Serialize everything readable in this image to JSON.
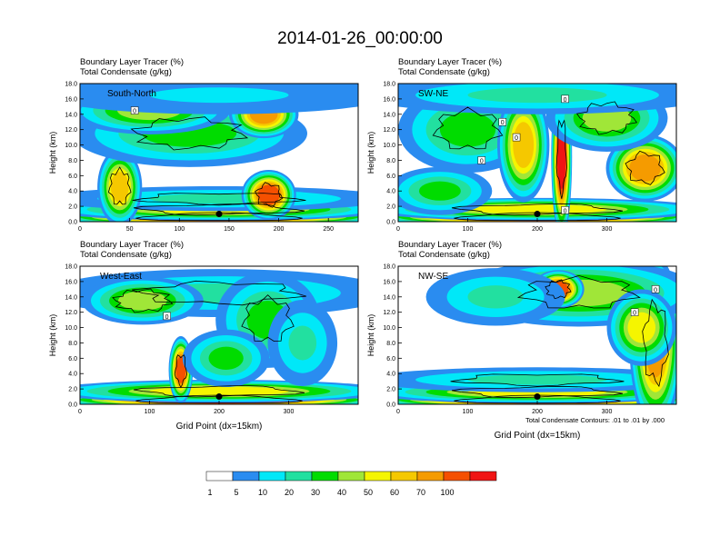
{
  "figure": {
    "title": "2014-01-26_00:00:00",
    "xlabel": "Grid Point (dx=15km)",
    "contour_note": "Total Condensate Contours: .01 to .01 by .000"
  },
  "colors": {
    "scale": [
      "#ffffff",
      "#2a8cf0",
      "#00e8f8",
      "#22e0a0",
      "#00dc00",
      "#a0e638",
      "#f5f500",
      "#f5c800",
      "#f59b00",
      "#f55000",
      "#f01414"
    ],
    "contour": "#000000",
    "frame": "#000000"
  },
  "colorbar": {
    "labels": [
      "1",
      "5",
      "10",
      "20",
      "30",
      "40",
      "50",
      "60",
      "70",
      "100"
    ]
  },
  "chart_data": [
    {
      "type": "heatmap",
      "title": "Boundary Layer Tracer    (%)",
      "subtitle": "Total Condensate    (g/kg)",
      "panel_label": "South-North",
      "ylabel": "Height (km)",
      "xlim": [
        0,
        280
      ],
      "ylim": [
        0,
        18
      ],
      "x_ticks": [
        "0",
        "50",
        "100",
        "150",
        "200",
        "250"
      ],
      "y_ticks": [
        "0.0",
        "2.0",
        "4.0",
        "6.0",
        "8.0",
        "10.0",
        "12.0",
        "14.0",
        "16.0",
        "18.0"
      ],
      "marker": {
        "x": 140,
        "y": 1.0
      },
      "contour_labels": [
        {
          "x": 55,
          "y": 14.5,
          "text": "0"
        }
      ],
      "features": [
        {
          "x": 140,
          "y": 0.6,
          "w": 140,
          "h": 0.9,
          "v": 9
        },
        {
          "x": 140,
          "y": 1.6,
          "w": 140,
          "h": 1.2,
          "v": 5
        },
        {
          "x": 140,
          "y": 3.0,
          "w": 140,
          "h": 1.3,
          "v": 2
        },
        {
          "x": 190,
          "y": 3.5,
          "w": 22,
          "h": 2.6,
          "v": 8
        },
        {
          "x": 40,
          "y": 4.5,
          "w": 18,
          "h": 4.0,
          "v": 6
        },
        {
          "x": 110,
          "y": 11.5,
          "w": 95,
          "h": 3.5,
          "v": 3
        },
        {
          "x": 70,
          "y": 14.5,
          "w": 65,
          "h": 2.5,
          "v": 4
        },
        {
          "x": 185,
          "y": 14.0,
          "w": 28,
          "h": 2.5,
          "v": 7
        },
        {
          "x": 140,
          "y": 16.5,
          "w": 140,
          "h": 2.0,
          "v": 1
        }
      ]
    },
    {
      "type": "heatmap",
      "title": "Boundary Layer Tracer    (%)",
      "subtitle": "Total Condensate    (g/kg)",
      "panel_label": "SW-NE",
      "ylabel": "Height (km)",
      "xlim": [
        0,
        400
      ],
      "ylim": [
        0,
        18
      ],
      "x_ticks": [
        "0",
        "100",
        "200",
        "300"
      ],
      "y_ticks": [
        "0.0",
        "2.0",
        "4.0",
        "6.0",
        "8.0",
        "10.0",
        "12.0",
        "14.0",
        "16.0",
        "18.0"
      ],
      "marker": {
        "x": 200,
        "y": 1.0
      },
      "contour_labels": [
        {
          "x": 240,
          "y": 16.0,
          "text": "0"
        },
        {
          "x": 150,
          "y": 13.0,
          "text": "0"
        },
        {
          "x": 170,
          "y": 11.0,
          "text": "0"
        },
        {
          "x": 120,
          "y": 8.0,
          "text": "0"
        },
        {
          "x": 240,
          "y": 1.5,
          "text": "0"
        }
      ],
      "features": [
        {
          "x": 200,
          "y": 0.6,
          "w": 200,
          "h": 0.9,
          "v": 9
        },
        {
          "x": 200,
          "y": 1.6,
          "w": 200,
          "h": 1.2,
          "v": 5
        },
        {
          "x": 235,
          "y": 8.5,
          "w": 12,
          "h": 8.5,
          "v": 9
        },
        {
          "x": 355,
          "y": 7.0,
          "w": 45,
          "h": 3.5,
          "v": 7
        },
        {
          "x": 100,
          "y": 12.0,
          "w": 80,
          "h": 4.5,
          "v": 3
        },
        {
          "x": 300,
          "y": 13.5,
          "w": 70,
          "h": 3.5,
          "v": 4
        },
        {
          "x": 180,
          "y": 10.0,
          "w": 30,
          "h": 6.0,
          "v": 6
        },
        {
          "x": 200,
          "y": 16.5,
          "w": 200,
          "h": 2.0,
          "v": 2
        },
        {
          "x": 60,
          "y": 4.0,
          "w": 60,
          "h": 2.5,
          "v": 3
        }
      ]
    },
    {
      "type": "heatmap",
      "title": "Boundary Layer Tracer    (%)",
      "subtitle": "Total Condensate    (g/kg)",
      "panel_label": "West-East",
      "ylabel": "Height (km)",
      "xlim": [
        0,
        400
      ],
      "ylim": [
        0,
        18
      ],
      "x_ticks": [
        "0",
        "100",
        "200",
        "300"
      ],
      "y_ticks": [
        "0.0",
        "2.0",
        "4.0",
        "6.0",
        "8.0",
        "10.0",
        "12.0",
        "14.0",
        "16.0",
        "18.0"
      ],
      "marker": {
        "x": 200,
        "y": 1.0
      },
      "contour_labels": [
        {
          "x": 125,
          "y": 11.5,
          "text": "0"
        }
      ],
      "features": [
        {
          "x": 200,
          "y": 0.6,
          "w": 200,
          "h": 0.9,
          "v": 9
        },
        {
          "x": 200,
          "y": 1.7,
          "w": 200,
          "h": 1.2,
          "v": 5
        },
        {
          "x": 145,
          "y": 4.5,
          "w": 14,
          "h": 3.5,
          "v": 8
        },
        {
          "x": 200,
          "y": 14.5,
          "w": 200,
          "h": 2.5,
          "v": 2
        },
        {
          "x": 270,
          "y": 11.0,
          "w": 60,
          "h": 5.0,
          "v": 3
        },
        {
          "x": 90,
          "y": 13.5,
          "w": 70,
          "h": 2.5,
          "v": 4
        },
        {
          "x": 320,
          "y": 8.0,
          "w": 40,
          "h": 4.5,
          "v": 2
        },
        {
          "x": 210,
          "y": 6.0,
          "w": 50,
          "h": 3.0,
          "v": 3
        }
      ]
    },
    {
      "type": "heatmap",
      "title": "Boundary Layer Tracer    (%)",
      "subtitle": "Total Condensate    (g/kg)",
      "panel_label": "NW-SE",
      "ylabel": "Height (km)",
      "xlim": [
        0,
        400
      ],
      "ylim": [
        0,
        18
      ],
      "x_ticks": [
        "0",
        "100",
        "200",
        "300"
      ],
      "y_ticks": [
        "0.0",
        "2.0",
        "4.0",
        "6.0",
        "8.0",
        "10.0",
        "12.0",
        "14.0",
        "16.0",
        "18.0"
      ],
      "marker": {
        "x": 200,
        "y": 1.0
      },
      "contour_labels": [
        {
          "x": 370,
          "y": 15.0,
          "text": "0"
        },
        {
          "x": 340,
          "y": 12.0,
          "text": "0"
        }
      ],
      "features": [
        {
          "x": 200,
          "y": 0.6,
          "w": 200,
          "h": 0.9,
          "v": 9
        },
        {
          "x": 200,
          "y": 1.6,
          "w": 200,
          "h": 1.2,
          "v": 5
        },
        {
          "x": 200,
          "y": 3.2,
          "w": 200,
          "h": 1.3,
          "v": 2
        },
        {
          "x": 370,
          "y": 8.0,
          "w": 30,
          "h": 9.0,
          "v": 7
        },
        {
          "x": 260,
          "y": 14.5,
          "w": 140,
          "h": 3.5,
          "v": 4
        },
        {
          "x": 230,
          "y": 15.0,
          "w": 30,
          "h": 2.0,
          "v": 8
        },
        {
          "x": 140,
          "y": 14.0,
          "w": 80,
          "h": 3.0,
          "v": 2
        },
        {
          "x": 350,
          "y": 10.0,
          "w": 40,
          "h": 4.0,
          "v": 5
        }
      ]
    }
  ]
}
